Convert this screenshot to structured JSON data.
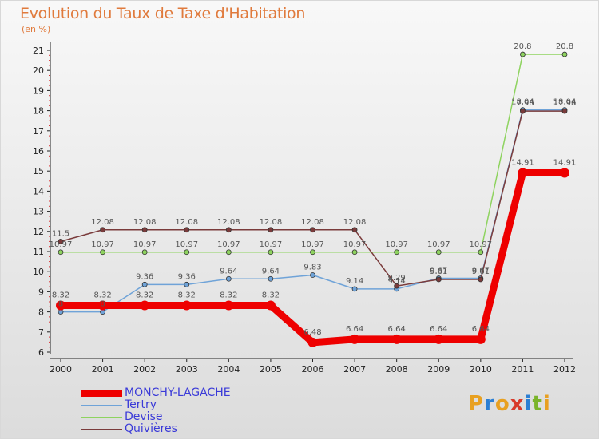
{
  "title": "Evolution du Taux de Taxe d'Habitation",
  "unit": "(en %)",
  "logo": {
    "text": "Proxiti",
    "letters": [
      "P",
      "r",
      "o",
      "x",
      "i",
      "t",
      "i"
    ],
    "colors": [
      "#e8a020",
      "#2b7fd4",
      "#e8a020",
      "#d83a2a",
      "#2b7fd4",
      "#7ab42a",
      "#e8a020"
    ]
  },
  "chart_data": {
    "type": "line",
    "title": "Evolution du Taux de Taxe d'Habitation",
    "ylabel": "(en %)",
    "xlabel": "",
    "ylim": [
      6,
      21
    ],
    "yticks": [
      6,
      7,
      8,
      9,
      10,
      11,
      12,
      13,
      14,
      15,
      16,
      17,
      18,
      19,
      20,
      21
    ],
    "categories": [
      "2000",
      "2001",
      "2002",
      "2003",
      "2004",
      "2005",
      "2006",
      "2007",
      "2008",
      "2009",
      "2010",
      "2011",
      "2012"
    ],
    "grid": false,
    "legend_position": "bottom-left",
    "series": [
      {
        "name": "MONCHY-LAGACHE",
        "color": "#ee0000",
        "values": [
          8.32,
          8.32,
          8.32,
          8.32,
          8.32,
          8.32,
          6.48,
          6.64,
          6.64,
          6.64,
          6.64,
          14.91,
          14.91
        ],
        "labels": [
          "8.32",
          "8.32",
          "8.32",
          "8.32",
          "8.32",
          "8.32",
          "6.48",
          "6.64",
          "6.64",
          "6.64",
          "6.64",
          "14.91",
          "14.91"
        ]
      },
      {
        "name": "Tertry",
        "color": "#6fa3d8",
        "values": [
          8,
          8,
          9.36,
          9.36,
          9.64,
          9.64,
          9.83,
          9.14,
          9.14,
          9.67,
          9.67,
          18.04,
          18.04
        ],
        "labels": [
          "8",
          "8",
          "9.36",
          "9.36",
          "9.64",
          "9.64",
          "9.83",
          "9.14",
          "9.14",
          "9.67",
          "9.67",
          "18.04",
          "18.04"
        ]
      },
      {
        "name": "Devise",
        "color": "#8ed35f",
        "values": [
          10.97,
          10.97,
          10.97,
          10.97,
          10.97,
          10.97,
          10.97,
          10.97,
          10.97,
          10.97,
          10.97,
          20.8,
          20.8
        ],
        "labels": [
          "10.97",
          "10.97",
          "10.97",
          "10.97",
          "10.97",
          "10.97",
          "10.97",
          "10.97",
          "10.97",
          "10.97",
          "10.97",
          "20.8",
          "20.8"
        ]
      },
      {
        "name": "Quivières",
        "color": "#7a3b3b",
        "values": [
          11.5,
          12.08,
          12.08,
          12.08,
          12.08,
          12.08,
          12.08,
          12.08,
          9.29,
          9.61,
          9.61,
          17.98,
          17.98
        ],
        "labels": [
          "11.5",
          "12.08",
          "12.08",
          "12.08",
          "12.08",
          "12.08",
          "12.08",
          "12.08",
          "9.29",
          "9.61",
          "9.61",
          "17.98",
          "17.98"
        ]
      }
    ]
  }
}
